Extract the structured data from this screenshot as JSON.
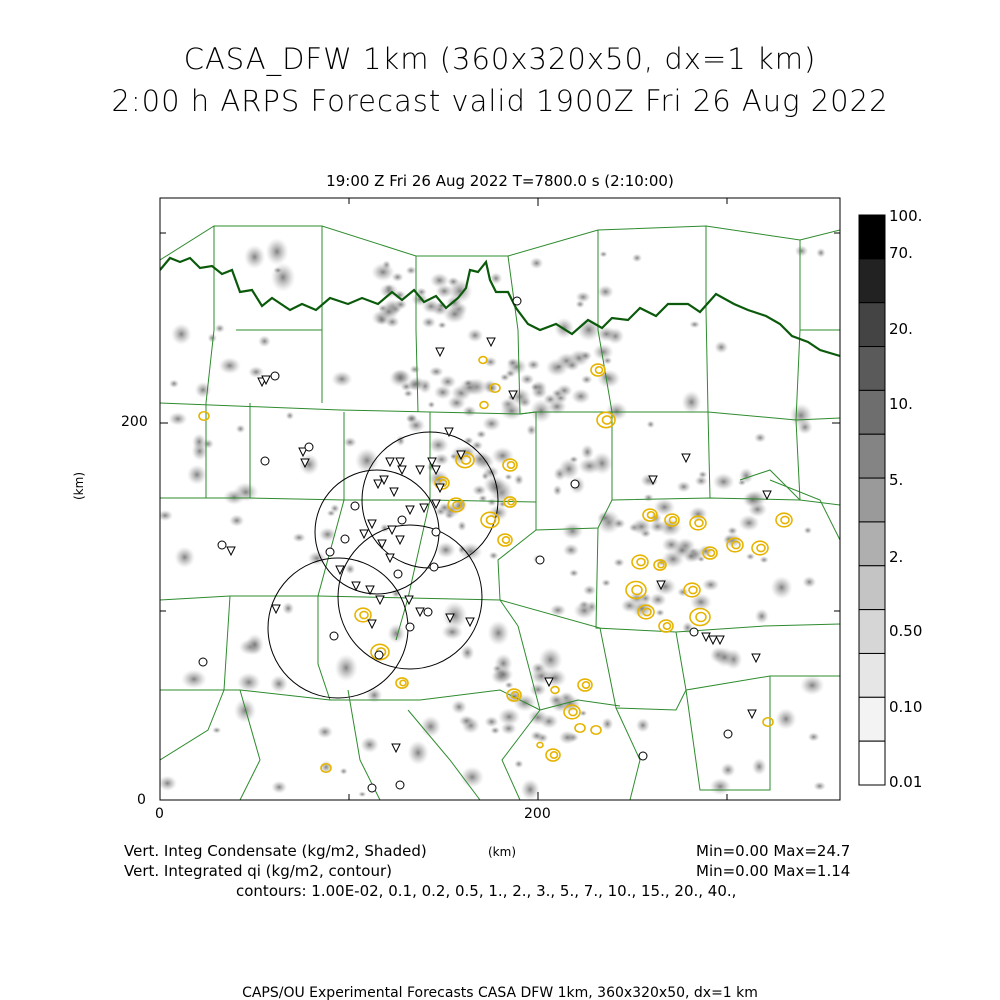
{
  "title_line1": "CASA_DFW 1km (360x320x50, dx=1 km)",
  "title_line2": "2:00 h ARPS Forecast valid 1900Z Fri 26 Aug 2022",
  "plot_subtitle": "19:00 Z Fri 26 Aug 2022   T=7800.0 s (2:10:00)",
  "axes": {
    "y_unit": "(km)",
    "x_unit": "(km)",
    "x_ticks": [
      "0",
      "200"
    ],
    "y_ticks": [
      "0",
      "200"
    ]
  },
  "colorbar": {
    "labels": [
      "100.",
      "70.",
      "20.",
      "10.",
      "5.",
      "2.",
      "0.50",
      "0.10",
      "0.01"
    ],
    "fills": [
      "#000000",
      "#222222",
      "#444444",
      "#5a5a5a",
      "#6e6e6e",
      "#848484",
      "#9a9a9a",
      "#afafaf",
      "#c4c4c4",
      "#d6d6d6",
      "#e6e6e6",
      "#f3f3f3",
      "#ffffff"
    ]
  },
  "legend": {
    "line1_left": "Vert. Integ Condensate (kg/m2, Shaded)",
    "line1_right": "Min=0.00 Max=24.7",
    "line2_left": "Vert. Integrated qi (kg/m2, contour)",
    "line2_right": "Min=0.00 Max=1.14",
    "contours": "contours: 1.00E-02, 0.1, 0.2, 0.5, 1., 2., 3., 5., 7., 10., 15., 20., 40.,"
  },
  "footer": "CAPS/OU Experimental Forecasts  CASA DFW 1km, 360x320x50, dx=1 km",
  "colors": {
    "county_line": "#2e8b2e",
    "state_border": "#0b5a0b",
    "contour": "#e6b400",
    "shade": "#8c8c8c"
  }
}
